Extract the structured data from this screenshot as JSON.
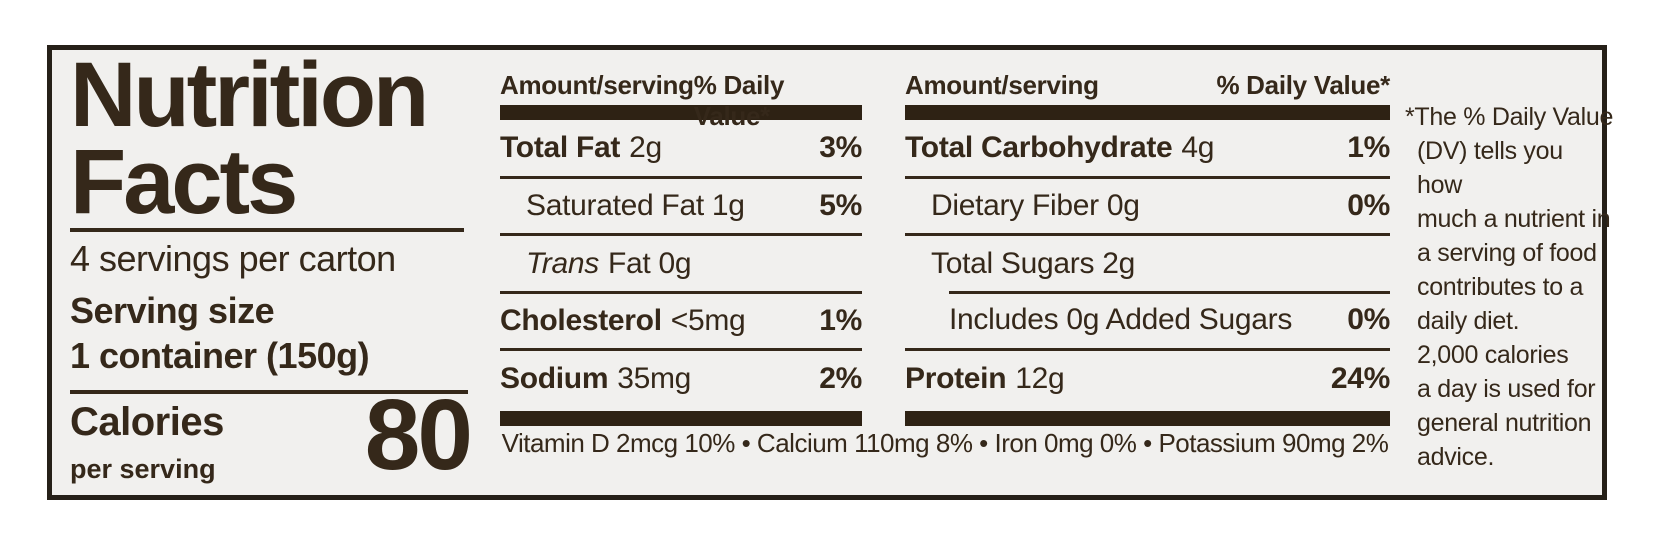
{
  "colors": {
    "ink": "#35281a",
    "panel_background": "#f1f0ee",
    "page_background": "#ffffff",
    "border": "#262018"
  },
  "label": {
    "title": "Nutrition\nFacts",
    "servings_per_carton": "4 servings per carton",
    "serving_size": "Serving size\n1 container (150g)",
    "calories": {
      "label": "Calories",
      "sublabel": "per serving",
      "value": "80"
    },
    "col_header": {
      "amount": "Amount/serving",
      "daily_value": "% Daily Value*"
    },
    "cols": [
      {
        "rows": [
          {
            "bold": "Total Fat",
            "rest": "2g",
            "dv": "3%"
          },
          {
            "rest": "Saturated Fat 1g",
            "dv": "5%"
          },
          {
            "italic": "Trans",
            "rest": "Fat 0g",
            "dv": ""
          },
          {
            "bold": "Cholesterol",
            "rest": "<5mg",
            "dv": "1%"
          },
          {
            "bold": "Sodium",
            "rest": "35mg",
            "dv": "2%"
          }
        ]
      },
      {
        "rows": [
          {
            "bold": "Total Carbohydrate",
            "rest": "4g",
            "dv": "1%"
          },
          {
            "rest": "Dietary Fiber 0g",
            "dv": "0%"
          },
          {
            "rest": "Total Sugars 2g",
            "dv": ""
          },
          {
            "rest": "Includes 0g Added Sugars",
            "dv": "0%"
          },
          {
            "bold": "Protein",
            "rest": "12g",
            "dv": "24%"
          }
        ]
      }
    ],
    "micronutrients": "Vitamin D 2mcg 10% • Calcium 110mg 8% • Iron 0mg 0% • Potassium 90mg 2%",
    "footnote": "*The % Daily Value\n(DV) tells you how\nmuch a nutrient in\na serving of food\ncontributes to a\ndaily diet.\n2,000 calories\na day is used for\ngeneral nutrition\nadvice."
  }
}
